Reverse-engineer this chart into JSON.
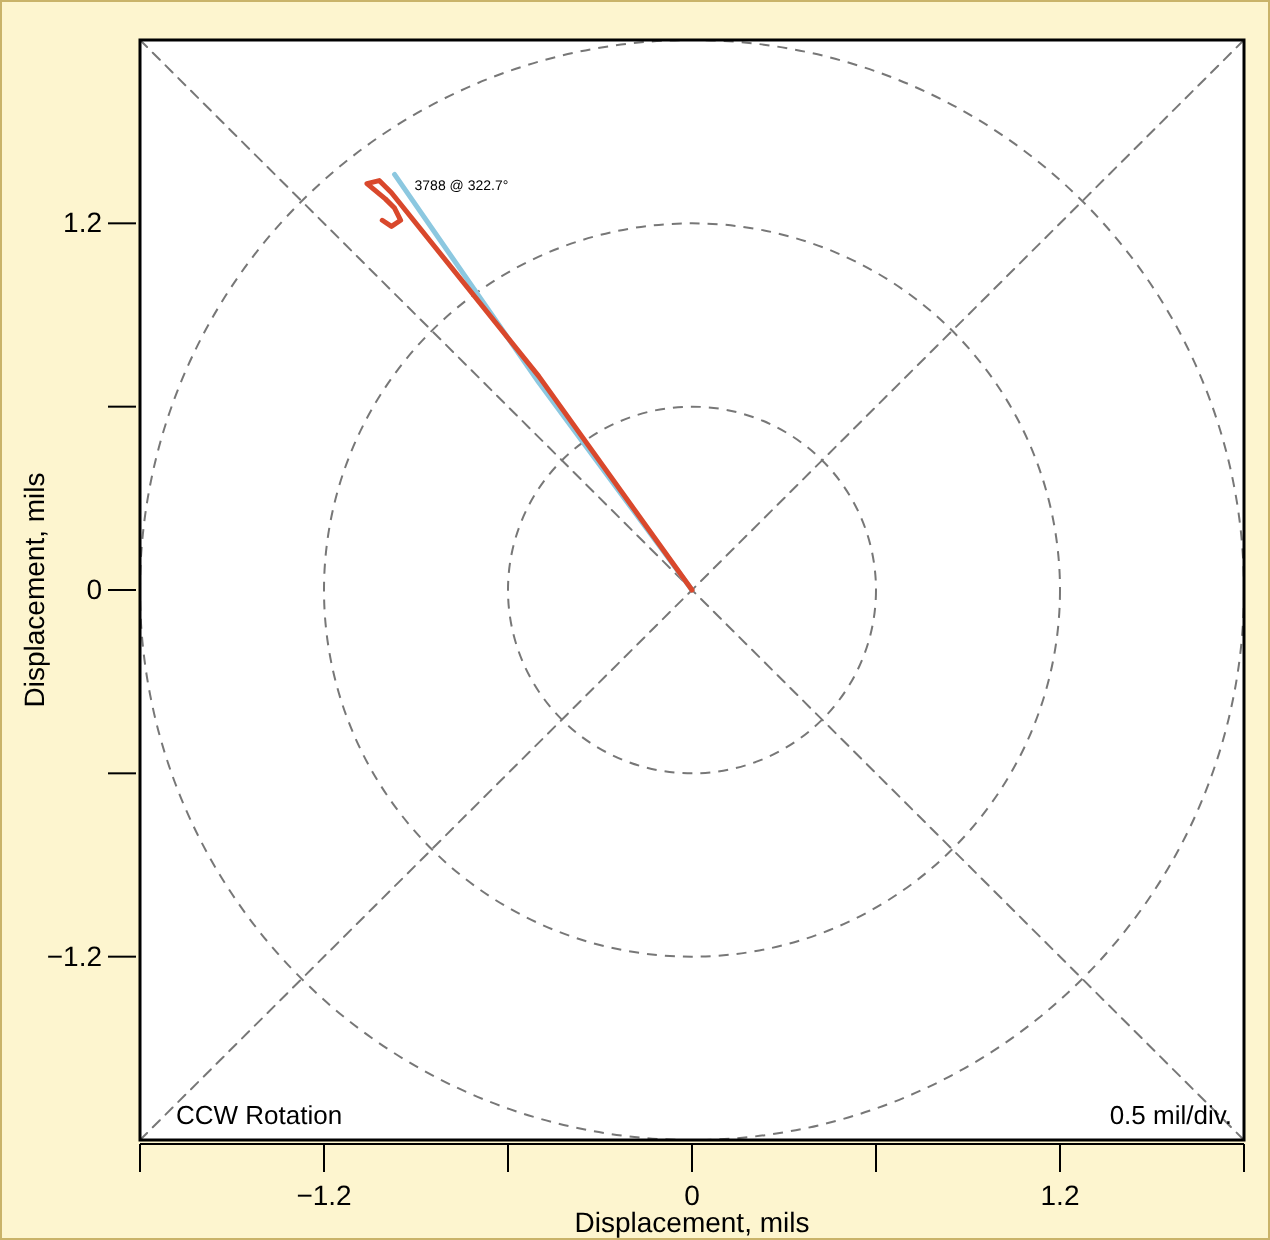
{
  "chart_data": {
    "type": "line",
    "xlabel": "Displacement, mils",
    "ylabel": "Displacement, mils",
    "xlim": [
      -1.8,
      1.8
    ],
    "ylim": [
      -1.8,
      1.8
    ],
    "xticks": [
      {
        "value": -1.8,
        "label": null
      },
      -1.2,
      {
        "value": -0.6,
        "label": null
      },
      0,
      {
        "value": 0.6,
        "label": null
      },
      1.2,
      {
        "value": 1.8,
        "label": null
      }
    ],
    "yticks": [
      -1.2,
      {
        "value": -0.6,
        "label": null
      },
      0,
      {
        "value": 0.6,
        "label": null
      },
      1.2
    ],
    "marker": "none",
    "line_style": "solid",
    "series": [
      {
        "color": "#777777",
        "line_style": "dashed",
        "x": [
          -1.8,
          1.8
        ],
        "values": [
          -1.8,
          1.8
        ]
      },
      {
        "color": "#777777",
        "line_style": "dashed",
        "x": [
          -1.8,
          1.8
        ],
        "values": [
          1.8,
          -1.8
        ]
      },
      {
        "color": "#8cc8e0",
        "x": [
          0,
          -0.5,
          -0.97
        ],
        "values": [
          0,
          0.68,
          1.36
        ]
      },
      {
        "color": "#d9482c",
        "x": [
          0,
          -0.5,
          -0.98,
          -1.02,
          -1.06,
          -1.0,
          -0.97,
          -0.95,
          -0.98,
          -1.01
        ],
        "values": [
          0,
          0.7,
          1.3,
          1.34,
          1.33,
          1.28,
          1.25,
          1.21,
          1.19,
          1.21
        ]
      }
    ],
    "annotations": [
      {
        "text": "3788 @ 322.7°",
        "x": -0.97,
        "y": 1.33
      },
      "CCW Rotation",
      "0.5 mil/div."
    ]
  }
}
